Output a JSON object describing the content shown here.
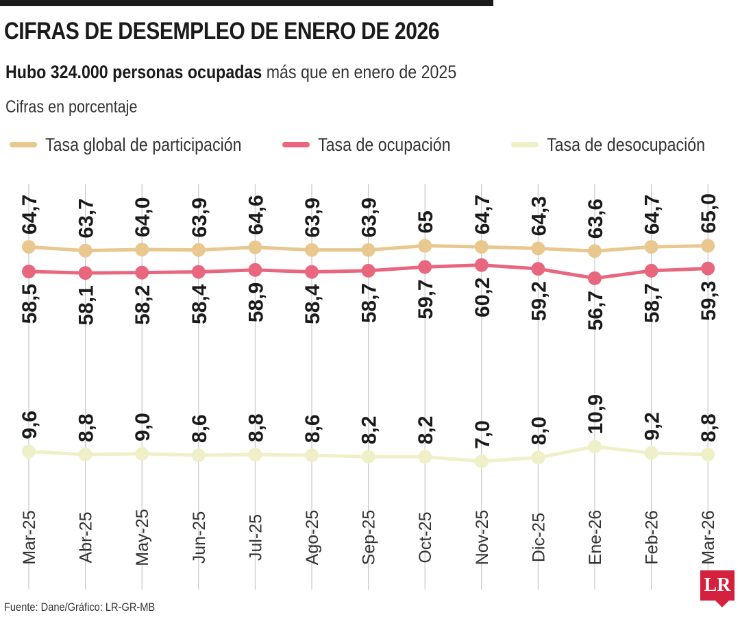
{
  "header": {
    "title": "CIFRAS DE DESEMPLEO DE ENERO DE 2026",
    "subtitle_bold": "Hubo 324.000 personas ocupadas",
    "subtitle_rest": " más que en enero de 2025",
    "units": "Cifras en porcentaje"
  },
  "colors": {
    "participacion": "#e8c88f",
    "ocupacion": "#e8677e",
    "desocupacion": "#f0f0c8",
    "gridline": "#c8c8c8"
  },
  "chart_data": {
    "type": "line",
    "categories": [
      "Mar-25",
      "Abr-25",
      "May-25",
      "Jun-25",
      "Jul-25",
      "Ago-25",
      "Sep-25",
      "Oct-25",
      "Nov-25",
      "Dic-25",
      "Ene-26",
      "Feb-26",
      "Mar-26"
    ],
    "series": [
      {
        "name": "Tasa global de participación",
        "values": [
          64.7,
          63.7,
          64.0,
          63.9,
          64.6,
          63.9,
          63.9,
          65,
          64.7,
          64.3,
          63.6,
          64.7,
          65.0
        ],
        "labels": [
          "64,7",
          "63,7",
          "64,0",
          "63,9",
          "64,6",
          "63,9",
          "63,9",
          "65",
          "64,7",
          "64,3",
          "63,6",
          "64,7",
          "65,0"
        ]
      },
      {
        "name": "Tasa de ocupación",
        "values": [
          58.5,
          58.1,
          58.2,
          58.4,
          58.9,
          58.4,
          58.7,
          59.7,
          60.2,
          59.2,
          56.7,
          58.7,
          59.3
        ],
        "labels": [
          "58,5",
          "58,1",
          "58,2",
          "58,4",
          "58,9",
          "58,4",
          "58,7",
          "59,7",
          "60,2",
          "59,2",
          "56,7",
          "58,7",
          "59,3"
        ]
      },
      {
        "name": "Tasa de desocupación",
        "values": [
          9.6,
          8.8,
          9.0,
          8.6,
          8.8,
          8.6,
          8.2,
          8.2,
          7.0,
          8.0,
          10.9,
          9.2,
          8.8
        ],
        "labels": [
          "9,6",
          "8,8",
          "9,0",
          "8,6",
          "8,8",
          "8,6",
          "8,2",
          "8,2",
          "7,0",
          "8,0",
          "10,9",
          "9,2",
          "8,8"
        ]
      }
    ],
    "legend_position": "top",
    "grid": "vertical"
  },
  "footer": {
    "source": "Fuente: Dane/Gráfico: LR-GR-MB",
    "logo_text": "LR"
  }
}
